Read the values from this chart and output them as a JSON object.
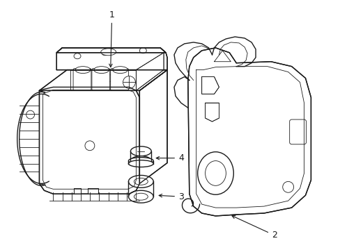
{
  "background_color": "#ffffff",
  "line_color": "#1a1a1a",
  "lw": 1.0,
  "tlw": 0.6,
  "fig_width": 4.89,
  "fig_height": 3.6,
  "dpi": 100
}
